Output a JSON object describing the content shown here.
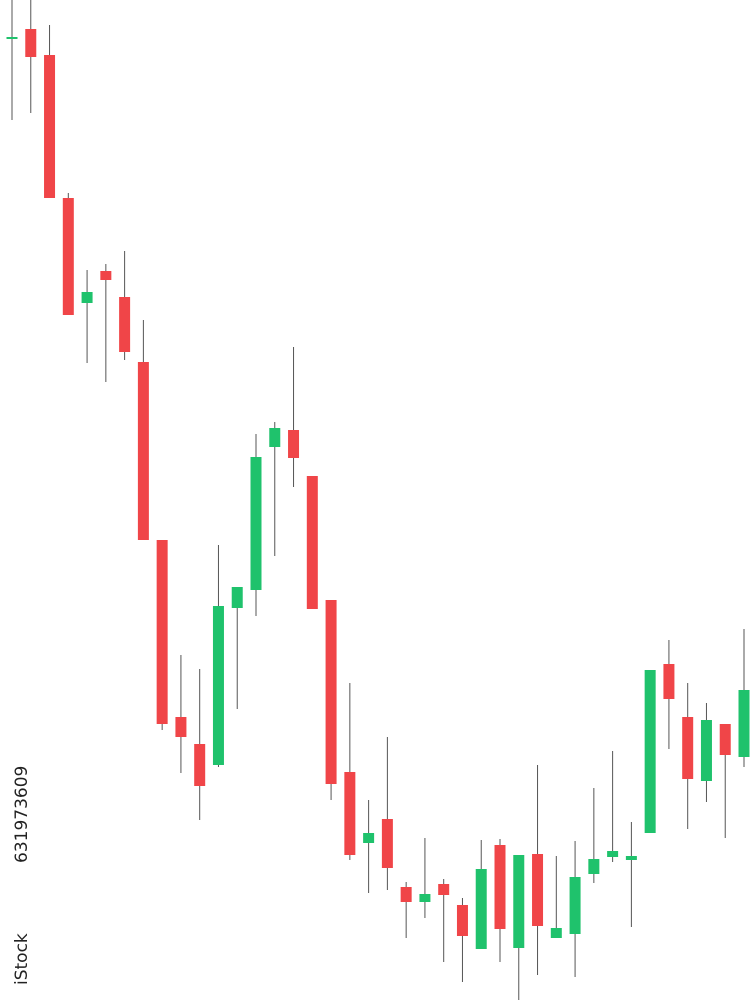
{
  "chart_data": {
    "type": "candlestick",
    "watermark": [
      "iStock",
      "631973609"
    ],
    "up_color": "#1fc26c",
    "down_color": "#f04548",
    "wick_color": "#555555",
    "ylim": [
      0,
      1000
    ],
    "open": [
      961,
      971,
      945,
      802,
      697,
      729,
      703,
      638,
      460,
      283,
      256,
      235,
      392,
      410,
      553,
      570,
      524,
      400,
      228,
      157,
      181,
      113,
      98,
      116,
      95,
      51,
      155,
      52,
      146,
      62,
      66,
      126,
      143,
      140,
      167,
      336,
      283,
      219,
      276,
      243
    ],
    "high": [
      1000,
      1000,
      975,
      807,
      730,
      736,
      749,
      680,
      460,
      345,
      331,
      455,
      413,
      566,
      578,
      653,
      524,
      400,
      317,
      200,
      263,
      118,
      162,
      121,
      102,
      160,
      161,
      145,
      235,
      144,
      159,
      212,
      249,
      178,
      330,
      360,
      317,
      297,
      276,
      371
    ],
    "low": [
      880,
      887,
      802,
      685,
      637,
      618,
      640,
      460,
      270,
      227,
      180,
      233,
      291,
      384,
      444,
      513,
      391,
      200,
      140,
      107,
      110,
      62,
      82,
      38,
      18,
      51,
      38,
      0,
      25,
      62,
      23,
      117,
      138,
      73,
      167,
      251,
      171,
      198,
      162,
      233
    ],
    "close": [
      963,
      943,
      802,
      685,
      708,
      720,
      648,
      460,
      276,
      263,
      214,
      394,
      413,
      543,
      572,
      542,
      391,
      216,
      145,
      167,
      132,
      98,
      106,
      105,
      64,
      131,
      71,
      145,
      74,
      72,
      123,
      141,
      149,
      144,
      330,
      301,
      221,
      280,
      245,
      310
    ]
  }
}
